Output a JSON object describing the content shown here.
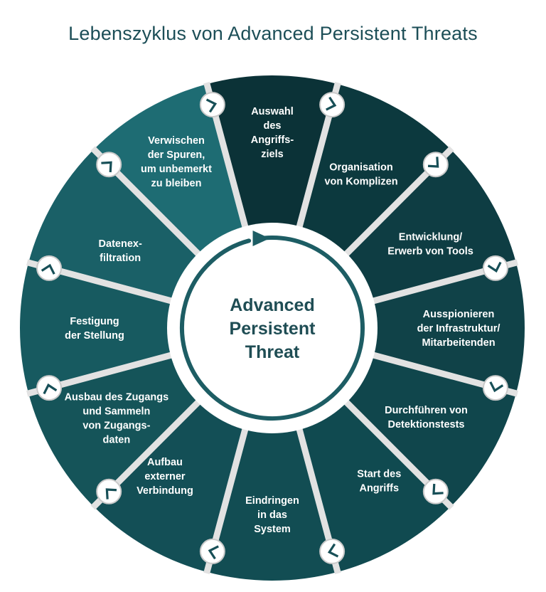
{
  "title": "Lebenszyklus von  Advanced Persistent Threats",
  "center": {
    "lines": [
      "Advanced",
      "Persistent",
      "Threat"
    ]
  },
  "steps": [
    {
      "lines": [
        "Auswahl",
        "des",
        "Angriffs-",
        "ziels"
      ]
    },
    {
      "lines": [
        "Organisation",
        "von Komplizen"
      ]
    },
    {
      "lines": [
        "Entwicklung/",
        "Erwerb von Tools"
      ]
    },
    {
      "lines": [
        "Ausspionieren",
        "der Infrastruktur/",
        "Mitarbeitenden"
      ]
    },
    {
      "lines": [
        "Durchführen von",
        "Detektionstests"
      ]
    },
    {
      "lines": [
        "Start des",
        "Angriffs"
      ]
    },
    {
      "lines": [
        "Eindringen",
        "in das",
        "System"
      ]
    },
    {
      "lines": [
        "Aufbau",
        "externer",
        "Verbindung"
      ]
    },
    {
      "lines": [
        "Ausbau des Zugangs",
        "und Sammeln",
        "von Zugangs-",
        "daten"
      ]
    },
    {
      "lines": [
        "Festigung",
        "der Stellung"
      ]
    },
    {
      "lines": [
        "Datenex-",
        "filtration"
      ]
    },
    {
      "lines": [
        "Verwischen",
        "der Spuren,",
        "um unbemerkt",
        "zu bleiben"
      ]
    }
  ],
  "colors": {
    "segments": [
      "#0b3237",
      "#0c393e",
      "#0e3d43",
      "#104248",
      "#10464c",
      "#104a50",
      "#124d53",
      "#134f56",
      "#155459",
      "#175a60",
      "#1a6067",
      "#1e6c73"
    ],
    "separator": "#e2e2e2",
    "node_fill": "#ffffff",
    "node_stroke": "#c9c9c9",
    "chevron": "#174f57",
    "center_ring": "#1d5d64"
  }
}
